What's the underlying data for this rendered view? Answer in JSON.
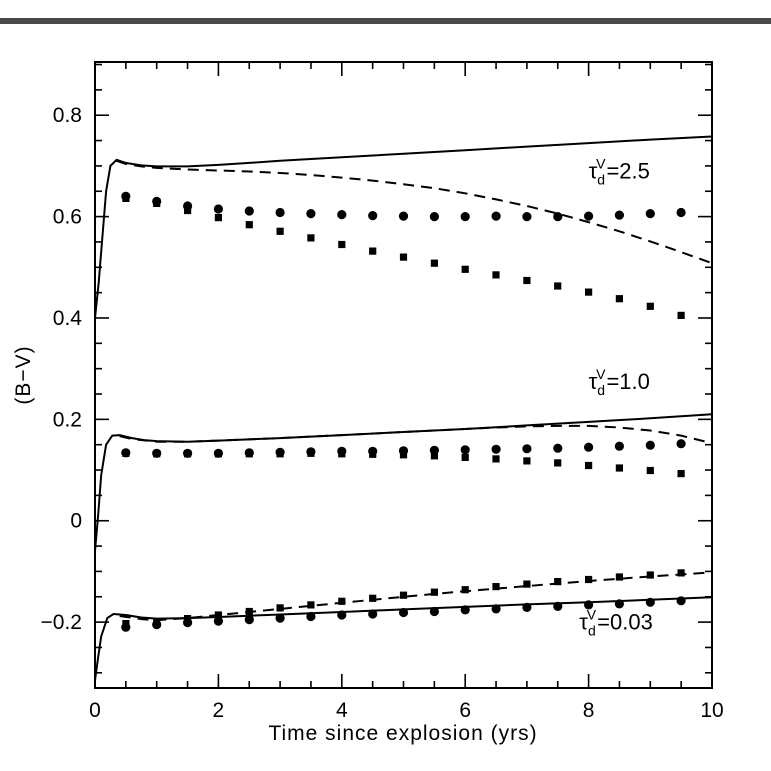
{
  "chart_data": {
    "type": "line",
    "title": "",
    "xlabel": "Time since explosion (yrs)",
    "ylabel": "(B−V)",
    "xlim": [
      0,
      10
    ],
    "ylim": [
      -0.33,
      0.905
    ],
    "grid": false,
    "xticks": [
      0,
      2,
      4,
      6,
      8,
      10
    ],
    "xtick_labels": [
      "0",
      "2",
      "4",
      "6",
      "8",
      "10"
    ],
    "yticks": [
      -0.2,
      0,
      0.2,
      0.4,
      0.6,
      0.8
    ],
    "ytick_labels": [
      "−0.2",
      "0",
      "0.2",
      "0.4",
      "0.6",
      "0.8"
    ],
    "x_minor_step": 0.5,
    "y_minor_step": 0.05,
    "colors": {
      "line": "#000000",
      "frame": "#000000",
      "annotation": "#7d7d7d",
      "background": "#ffffff"
    },
    "annotations": [
      {
        "symbol": "τ",
        "sub": "d",
        "sup": "V",
        "eq": "=2.5",
        "x": 8.0,
        "y": 0.675
      },
      {
        "symbol": "τ",
        "sub": "d",
        "sup": "V",
        "eq": "=1.0",
        "x": 8.0,
        "y": 0.26
      },
      {
        "symbol": "τ",
        "sub": "d",
        "sup": "V",
        "eq": "=0.03",
        "x": 7.85,
        "y": -0.215
      }
    ],
    "series": [
      {
        "name": "tau2.5-model-solid",
        "style": "line",
        "dash": "solid",
        "x": [
          0,
          0.06,
          0.12,
          0.18,
          0.25,
          0.35,
          0.5,
          0.75,
          1,
          1.5,
          2,
          2.5,
          3,
          4,
          5,
          6,
          7,
          8,
          9,
          10
        ],
        "y": [
          0.4,
          0.47,
          0.56,
          0.65,
          0.7,
          0.712,
          0.706,
          0.701,
          0.699,
          0.699,
          0.702,
          0.706,
          0.71,
          0.717,
          0.724,
          0.731,
          0.738,
          0.745,
          0.752,
          0.758
        ]
      },
      {
        "name": "tau2.5-model-dashed",
        "style": "line",
        "dash": "dashed",
        "x": [
          0.35,
          0.5,
          0.75,
          1,
          1.5,
          2,
          2.5,
          3,
          3.5,
          4,
          4.5,
          5,
          5.5,
          6,
          6.5,
          7,
          7.5,
          8,
          8.5,
          9,
          9.5,
          10
        ],
        "y": [
          0.71,
          0.704,
          0.699,
          0.696,
          0.693,
          0.691,
          0.689,
          0.686,
          0.682,
          0.677,
          0.671,
          0.664,
          0.656,
          0.646,
          0.634,
          0.621,
          0.606,
          0.589,
          0.571,
          0.551,
          0.53,
          0.508
        ]
      },
      {
        "name": "tau2.5-circles",
        "style": "scatter",
        "marker": "circle",
        "x": [
          0.5,
          1,
          1.5,
          2,
          2.5,
          3,
          3.5,
          4,
          4.5,
          5,
          5.5,
          6,
          6.5,
          7,
          7.5,
          8,
          8.5,
          9,
          9.5
        ],
        "y": [
          0.64,
          0.63,
          0.621,
          0.615,
          0.611,
          0.608,
          0.606,
          0.604,
          0.602,
          0.601,
          0.6,
          0.6,
          0.601,
          0.6,
          0.6,
          0.601,
          0.603,
          0.606,
          0.608
        ]
      },
      {
        "name": "tau2.5-squares",
        "style": "scatter",
        "marker": "square",
        "x": [
          0.5,
          1,
          1.5,
          2,
          2.5,
          3,
          3.5,
          4,
          4.5,
          5,
          5.5,
          6,
          6.5,
          7,
          7.5,
          8,
          8.5,
          9,
          9.5
        ],
        "y": [
          0.636,
          0.626,
          0.612,
          0.598,
          0.584,
          0.571,
          0.558,
          0.545,
          0.532,
          0.52,
          0.508,
          0.496,
          0.485,
          0.474,
          0.463,
          0.451,
          0.438,
          0.423,
          0.405
        ]
      },
      {
        "name": "tau1.0-model-solid",
        "style": "line",
        "dash": "solid",
        "x": [
          0,
          0.05,
          0.1,
          0.18,
          0.28,
          0.4,
          0.6,
          0.8,
          1,
          1.5,
          2,
          3,
          4,
          5,
          6,
          7,
          8,
          9,
          10
        ],
        "y": [
          -0.06,
          0.01,
          0.09,
          0.15,
          0.168,
          0.169,
          0.163,
          0.159,
          0.157,
          0.156,
          0.158,
          0.163,
          0.169,
          0.175,
          0.181,
          0.188,
          0.195,
          0.202,
          0.21
        ]
      },
      {
        "name": "tau1.0-model-dashed",
        "style": "line",
        "dash": "dashed",
        "x": [
          0.4,
          0.6,
          1,
          1.5,
          2,
          3,
          4,
          5,
          6,
          6.5,
          7,
          7.5,
          8,
          8.5,
          9,
          9.5,
          10
        ],
        "y": [
          0.167,
          0.161,
          0.156,
          0.156,
          0.158,
          0.163,
          0.169,
          0.175,
          0.181,
          0.184,
          0.186,
          0.187,
          0.187,
          0.184,
          0.178,
          0.168,
          0.153
        ]
      },
      {
        "name": "tau1.0-circles",
        "style": "scatter",
        "marker": "circle",
        "x": [
          0.5,
          1,
          1.5,
          2,
          2.5,
          3,
          3.5,
          4,
          4.5,
          5,
          5.5,
          6,
          6.5,
          7,
          7.5,
          8,
          8.5,
          9,
          9.5
        ],
        "y": [
          0.134,
          0.133,
          0.133,
          0.133,
          0.134,
          0.135,
          0.136,
          0.137,
          0.137,
          0.138,
          0.139,
          0.14,
          0.141,
          0.142,
          0.143,
          0.145,
          0.147,
          0.149,
          0.152
        ]
      },
      {
        "name": "tau1.0-squares",
        "style": "scatter",
        "marker": "square",
        "x": [
          0.5,
          1,
          1.5,
          2,
          2.5,
          3,
          3.5,
          4,
          4.5,
          5,
          5.5,
          6,
          6.5,
          7,
          7.5,
          8,
          8.5,
          9,
          9.5
        ],
        "y": [
          0.133,
          0.132,
          0.132,
          0.132,
          0.132,
          0.132,
          0.133,
          0.132,
          0.131,
          0.13,
          0.128,
          0.125,
          0.122,
          0.118,
          0.114,
          0.109,
          0.104,
          0.099,
          0.093
        ]
      },
      {
        "name": "tau0.03-model-solid",
        "style": "line",
        "dash": "solid",
        "x": [
          0,
          0.05,
          0.1,
          0.2,
          0.3,
          0.5,
          0.75,
          1,
          1.5,
          2,
          3,
          4,
          5,
          6,
          7,
          8,
          9,
          10
        ],
        "y": [
          -0.315,
          -0.27,
          -0.228,
          -0.192,
          -0.184,
          -0.186,
          -0.191,
          -0.193,
          -0.192,
          -0.19,
          -0.185,
          -0.18,
          -0.175,
          -0.17,
          -0.165,
          -0.161,
          -0.156,
          -0.151
        ]
      },
      {
        "name": "tau0.03-model-dashed",
        "style": "line",
        "dash": "dashed",
        "x": [
          0.4,
          0.75,
          1,
          1.5,
          2,
          2.5,
          3,
          4,
          5,
          6,
          7,
          8,
          9,
          10
        ],
        "y": [
          -0.188,
          -0.194,
          -0.196,
          -0.192,
          -0.186,
          -0.18,
          -0.174,
          -0.162,
          -0.15,
          -0.139,
          -0.129,
          -0.119,
          -0.11,
          -0.102
        ]
      },
      {
        "name": "tau0.03-circles",
        "style": "scatter",
        "marker": "circle",
        "x": [
          0.5,
          1,
          1.5,
          2,
          2.5,
          3,
          3.5,
          4,
          4.5,
          5,
          5.5,
          6,
          6.5,
          7,
          7.5,
          8,
          8.5,
          9,
          9.5
        ],
        "y": [
          -0.21,
          -0.205,
          -0.201,
          -0.198,
          -0.195,
          -0.192,
          -0.189,
          -0.186,
          -0.184,
          -0.181,
          -0.179,
          -0.176,
          -0.174,
          -0.171,
          -0.169,
          -0.166,
          -0.164,
          -0.161,
          -0.158
        ]
      },
      {
        "name": "tau0.03-squares",
        "style": "scatter",
        "marker": "square",
        "x": [
          0.5,
          1,
          1.5,
          2,
          2.5,
          3,
          3.5,
          4,
          4.5,
          5,
          5.5,
          6,
          6.5,
          7,
          7.5,
          8,
          8.5,
          9,
          9.5
        ],
        "y": [
          -0.203,
          -0.199,
          -0.193,
          -0.186,
          -0.179,
          -0.172,
          -0.166,
          -0.159,
          -0.153,
          -0.147,
          -0.141,
          -0.136,
          -0.13,
          -0.125,
          -0.12,
          -0.116,
          -0.111,
          -0.107,
          -0.103
        ]
      }
    ]
  }
}
